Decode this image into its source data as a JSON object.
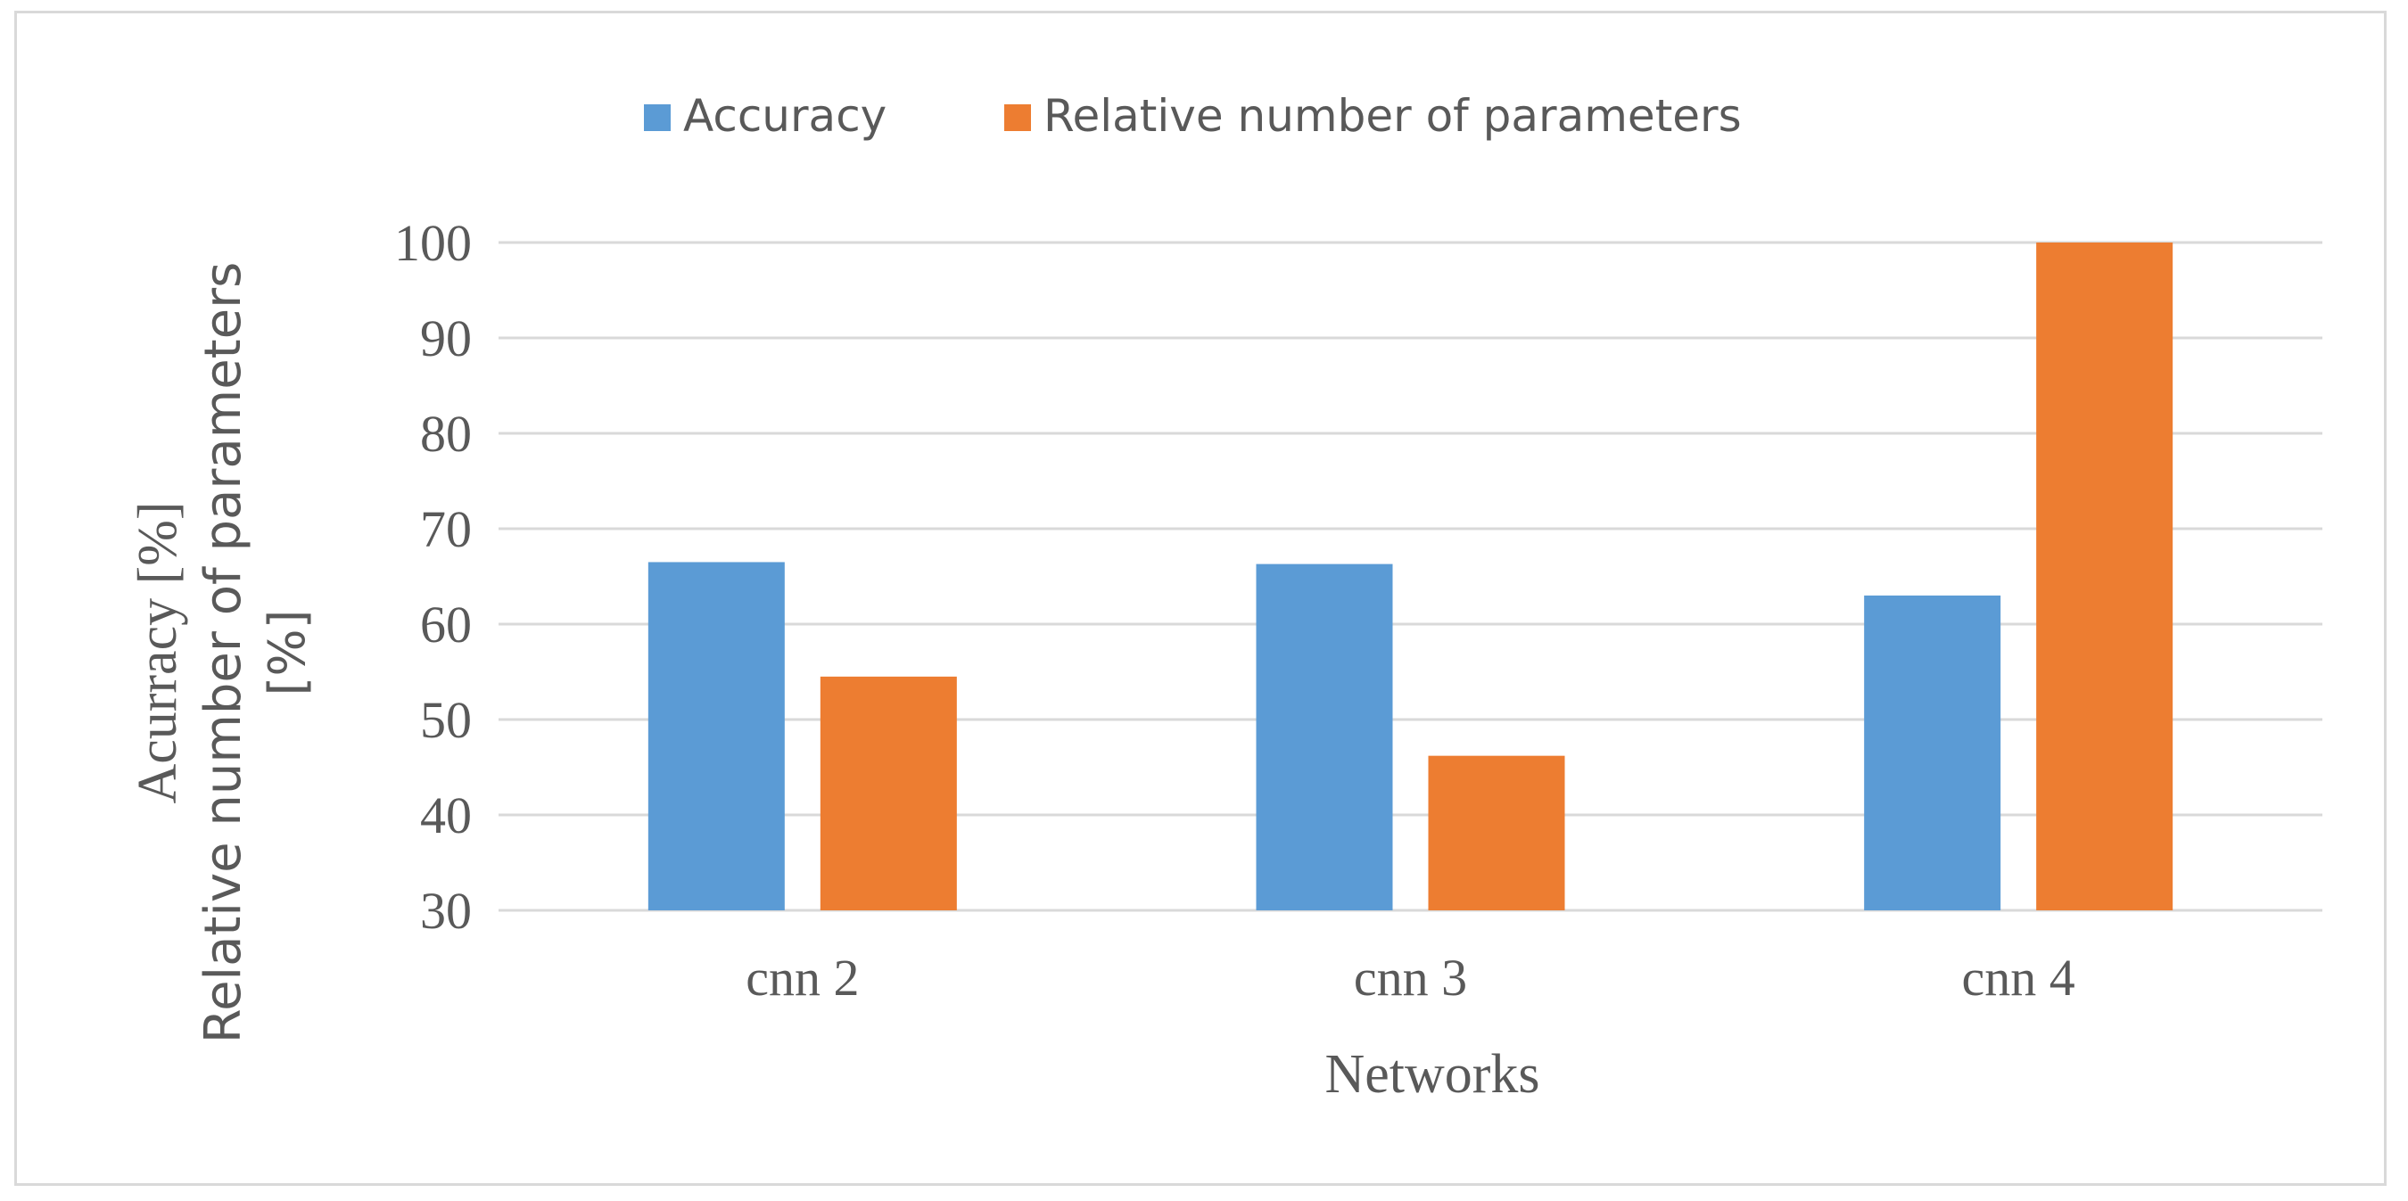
{
  "chart_data": {
    "type": "bar",
    "title": "",
    "categories": [
      "cnn 2",
      "cnn 3",
      "cnn 4"
    ],
    "series": [
      {
        "name": "Accuracy",
        "color": "#5b9bd5",
        "values": [
          66.5,
          66.3,
          63
        ]
      },
      {
        "name": "Relative number of parameters",
        "color": "#ed7d31",
        "values": [
          54.5,
          46.2,
          100
        ]
      }
    ],
    "xlabel": "Networks",
    "ylabel_lines": [
      "Acurracy [%]",
      "Relative number of parameters",
      "[%]"
    ],
    "ylim": [
      30,
      100
    ],
    "yticks": [
      30,
      40,
      50,
      60,
      70,
      80,
      90,
      100
    ],
    "grid": true,
    "legend_position": "top-center"
  }
}
